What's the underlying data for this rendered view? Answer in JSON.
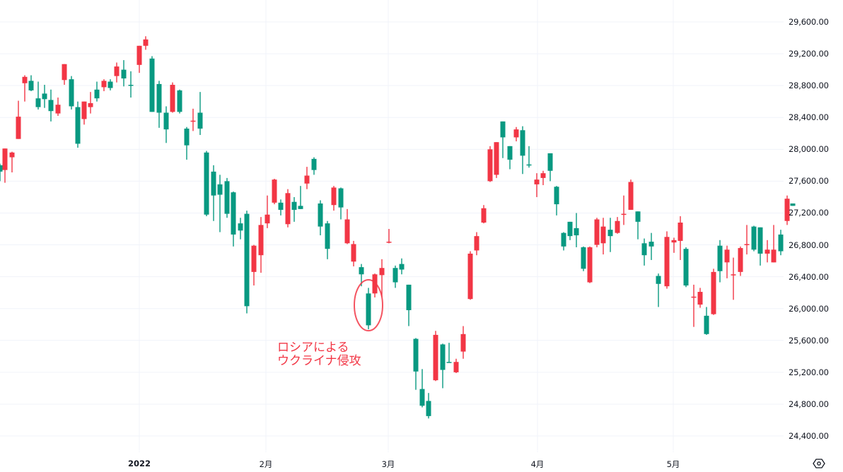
{
  "chart_data": {
    "type": "candlestick",
    "title": "",
    "xlabel": "",
    "ylabel": "",
    "ylim": [
      24200,
      29800
    ],
    "up_color": "#f23645",
    "down_color": "#089981",
    "grid_color": "#f0f3fa",
    "y_ticks": [
      "29,600.00",
      "29,200.00",
      "28,800.00",
      "28,400.00",
      "28,000.00",
      "27,600.00",
      "27,200.00",
      "26,800.00",
      "26,400.00",
      "26,000.00",
      "25,600.00",
      "25,200.00",
      "24,800.00",
      "24,400.00"
    ],
    "y_tick_values": [
      29600,
      29200,
      28800,
      28400,
      28000,
      27600,
      27200,
      26800,
      26400,
      26000,
      25600,
      25200,
      24800,
      24400
    ],
    "x_ticks": [
      {
        "label": "2022",
        "x": 197,
        "bold": true
      },
      {
        "label": "2月",
        "x": 376,
        "bold": false
      },
      {
        "label": "3月",
        "x": 549,
        "bold": false
      },
      {
        "label": "4月",
        "x": 760,
        "bold": false
      },
      {
        "label": "5月",
        "x": 952,
        "bold": false
      }
    ],
    "candles": [
      [
        0,
        27800,
        27720,
        27820,
        27600
      ],
      [
        7,
        27740,
        28010,
        28010,
        27580
      ],
      [
        17,
        27900,
        27960,
        27970,
        27710
      ],
      [
        26,
        28130,
        28410,
        28610,
        28130
      ],
      [
        35,
        28830,
        28910,
        28930,
        28600
      ],
      [
        44,
        28860,
        28740,
        28930,
        28730
      ],
      [
        54,
        28640,
        28530,
        28850,
        28500
      ],
      [
        63,
        28700,
        28630,
        28810,
        28520
      ],
      [
        72,
        28620,
        28480,
        28750,
        28350
      ],
      [
        82,
        28450,
        28560,
        28650,
        28420
      ],
      [
        91,
        28870,
        29070,
        29070,
        28810
      ],
      [
        101,
        28880,
        28540,
        28920,
        28500
      ],
      [
        110,
        28530,
        28070,
        28600,
        28020
      ],
      [
        119,
        28380,
        28600,
        28600,
        28310
      ],
      [
        128,
        28530,
        28580,
        28720,
        28450
      ],
      [
        137,
        28750,
        28640,
        28850,
        28600
      ],
      [
        147,
        28780,
        28860,
        28880,
        28730
      ],
      [
        156,
        28850,
        28770,
        28880,
        28740
      ],
      [
        165,
        28920,
        29040,
        29090,
        28840
      ],
      [
        175,
        29000,
        28890,
        29120,
        28790
      ],
      [
        185,
        28810,
        28800,
        28980,
        28650
      ],
      [
        197,
        29060,
        29300,
        29300,
        28960
      ],
      [
        206,
        29300,
        29380,
        29420,
        29250
      ],
      [
        215,
        29140,
        28470,
        29170,
        28470
      ],
      [
        225,
        28820,
        28460,
        28860,
        28270
      ],
      [
        235,
        28460,
        28250,
        28540,
        28080
      ],
      [
        244,
        28470,
        28810,
        28840,
        28460
      ],
      [
        254,
        28740,
        28470,
        28750,
        28450
      ],
      [
        264,
        28260,
        28050,
        28280,
        27870
      ],
      [
        273,
        28360,
        28360,
        28510,
        28230
      ],
      [
        283,
        28460,
        28260,
        28720,
        28180
      ],
      [
        292,
        27960,
        27180,
        27980,
        27160
      ],
      [
        302,
        27720,
        27420,
        27800,
        27100
      ],
      [
        311,
        27560,
        27430,
        27680,
        26960
      ],
      [
        321,
        27600,
        27190,
        27640,
        27140
      ],
      [
        330,
        27460,
        26930,
        27470,
        26780
      ],
      [
        340,
        27070,
        26980,
        27140,
        26870
      ],
      [
        349,
        27190,
        26030,
        27230,
        25940
      ],
      [
        359,
        26460,
        26790,
        26800,
        26290
      ],
      [
        369,
        26670,
        27050,
        27150,
        26450
      ],
      [
        378,
        27070,
        27180,
        27420,
        27010
      ],
      [
        388,
        27330,
        27620,
        27630,
        27310
      ],
      [
        397,
        27330,
        27240,
        27370,
        27170
      ],
      [
        407,
        27060,
        27450,
        27500,
        27020
      ],
      [
        416,
        27340,
        27240,
        27400,
        27090
      ],
      [
        425,
        27290,
        27250,
        27540,
        27250
      ],
      [
        434,
        27570,
        27670,
        27780,
        27500
      ],
      [
        444,
        27880,
        27740,
        27900,
        27680
      ],
      [
        453,
        27320,
        27030,
        27360,
        26920
      ],
      [
        463,
        27070,
        26750,
        27100,
        26620
      ],
      [
        472,
        27300,
        27520,
        27540,
        27230
      ],
      [
        482,
        27510,
        27270,
        27520,
        27120
      ],
      [
        491,
        26820,
        27120,
        27250,
        26810
      ],
      [
        500,
        26590,
        26810,
        26850,
        26530
      ],
      [
        511,
        26520,
        26430,
        26560,
        26280
      ],
      [
        521,
        26190,
        25790,
        26260,
        25740
      ],
      [
        530,
        26190,
        26430,
        26440,
        26140
      ],
      [
        540,
        26420,
        26510,
        26620,
        26150
      ],
      [
        550,
        26830,
        26840,
        27000,
        26820
      ],
      [
        559,
        26510,
        26330,
        26540,
        26260
      ],
      [
        568,
        26560,
        26490,
        26630,
        26430
      ],
      [
        578,
        26300,
        25980,
        26300,
        25780
      ],
      [
        588,
        25620,
        25210,
        25630,
        24980
      ],
      [
        597,
        24990,
        24780,
        25240,
        24760
      ],
      [
        606,
        24840,
        24650,
        24940,
        24620
      ],
      [
        616,
        25100,
        25670,
        25720,
        25090
      ],
      [
        626,
        25550,
        25230,
        25560,
        25000
      ],
      [
        635,
        25330,
        25320,
        25570,
        25320
      ],
      [
        645,
        25200,
        25330,
        25370,
        25190
      ],
      [
        655,
        25460,
        25680,
        25780,
        25370
      ],
      [
        665,
        26120,
        26690,
        26720,
        26110
      ],
      [
        674,
        26730,
        26910,
        26960,
        26670
      ],
      [
        684,
        27080,
        27260,
        27300,
        27070
      ],
      [
        693,
        27600,
        28000,
        28040,
        27590
      ],
      [
        702,
        27680,
        28090,
        28090,
        27640
      ],
      [
        711,
        28350,
        28150,
        28350,
        27890
      ],
      [
        721,
        28040,
        27870,
        28040,
        27750
      ],
      [
        730,
        28150,
        28250,
        28280,
        28100
      ],
      [
        739,
        28240,
        27920,
        28290,
        27690
      ],
      [
        748,
        27810,
        27800,
        28040,
        27770
      ],
      [
        759,
        27560,
        27620,
        27700,
        27400
      ],
      [
        768,
        27640,
        27700,
        27730,
        27550
      ],
      [
        778,
        27950,
        27730,
        27950,
        27600
      ],
      [
        787,
        27530,
        27310,
        27540,
        27170
      ],
      [
        797,
        26950,
        26780,
        26960,
        26730
      ],
      [
        806,
        27090,
        26910,
        27090,
        26860
      ],
      [
        815,
        27010,
        26920,
        27200,
        26770
      ],
      [
        825,
        26770,
        26500,
        26780,
        26470
      ],
      [
        834,
        26330,
        26770,
        26780,
        26320
      ],
      [
        844,
        26800,
        27120,
        27140,
        26770
      ],
      [
        853,
        26820,
        27030,
        27140,
        26680
      ],
      [
        863,
        26990,
        26910,
        27140,
        26710
      ],
      [
        873,
        26950,
        27100,
        27150,
        26940
      ],
      [
        882,
        27190,
        27190,
        27420,
        27050
      ],
      [
        892,
        27240,
        27590,
        27620,
        27240
      ],
      [
        902,
        27220,
        27090,
        27220,
        26870
      ],
      [
        911,
        26820,
        26670,
        26880,
        26540
      ],
      [
        921,
        26840,
        26780,
        26950,
        26610
      ],
      [
        931,
        26410,
        26310,
        26440,
        26020
      ],
      [
        943,
        26280,
        26900,
        26970,
        26250
      ],
      [
        953,
        26830,
        26860,
        26890,
        26700
      ],
      [
        962,
        26850,
        27080,
        27160,
        26610
      ],
      [
        970,
        26750,
        26290,
        26770,
        26270
      ],
      [
        981,
        26140,
        26150,
        26300,
        25770
      ],
      [
        990,
        26050,
        26210,
        26260,
        26010
      ],
      [
        999,
        25910,
        25680,
        26020,
        25670
      ],
      [
        1009,
        25930,
        26460,
        26500,
        25920
      ],
      [
        1018,
        26790,
        26470,
        26860,
        26330
      ],
      [
        1028,
        26580,
        26740,
        26790,
        26380
      ],
      [
        1037,
        26420,
        26430,
        26640,
        26110
      ],
      [
        1047,
        26460,
        26760,
        26780,
        26410
      ],
      [
        1056,
        26810,
        26810,
        27050,
        26680
      ],
      [
        1066,
        27030,
        26740,
        27040,
        26720
      ],
      [
        1075,
        27020,
        26690,
        27020,
        26540
      ],
      [
        1085,
        26690,
        26740,
        26860,
        26580
      ],
      [
        1094,
        26580,
        26740,
        27050,
        26580
      ],
      [
        1104,
        26930,
        26720,
        26990,
        26670
      ],
      [
        1113,
        27100,
        27380,
        27420,
        27050
      ],
      [
        1121,
        27320,
        27290,
        27320,
        27290
      ]
    ],
    "annotations": [
      {
        "text_line1": "ロシアによる",
        "text_line2": "ウクライナ侵攻",
        "target_x": 521,
        "target_price": 25990
      }
    ]
  },
  "axis": {
    "settings_icon": "gear-hexagon-icon"
  },
  "annotation": {
    "line1": "ロシアによる",
    "line2": "ウクライナ侵攻"
  }
}
